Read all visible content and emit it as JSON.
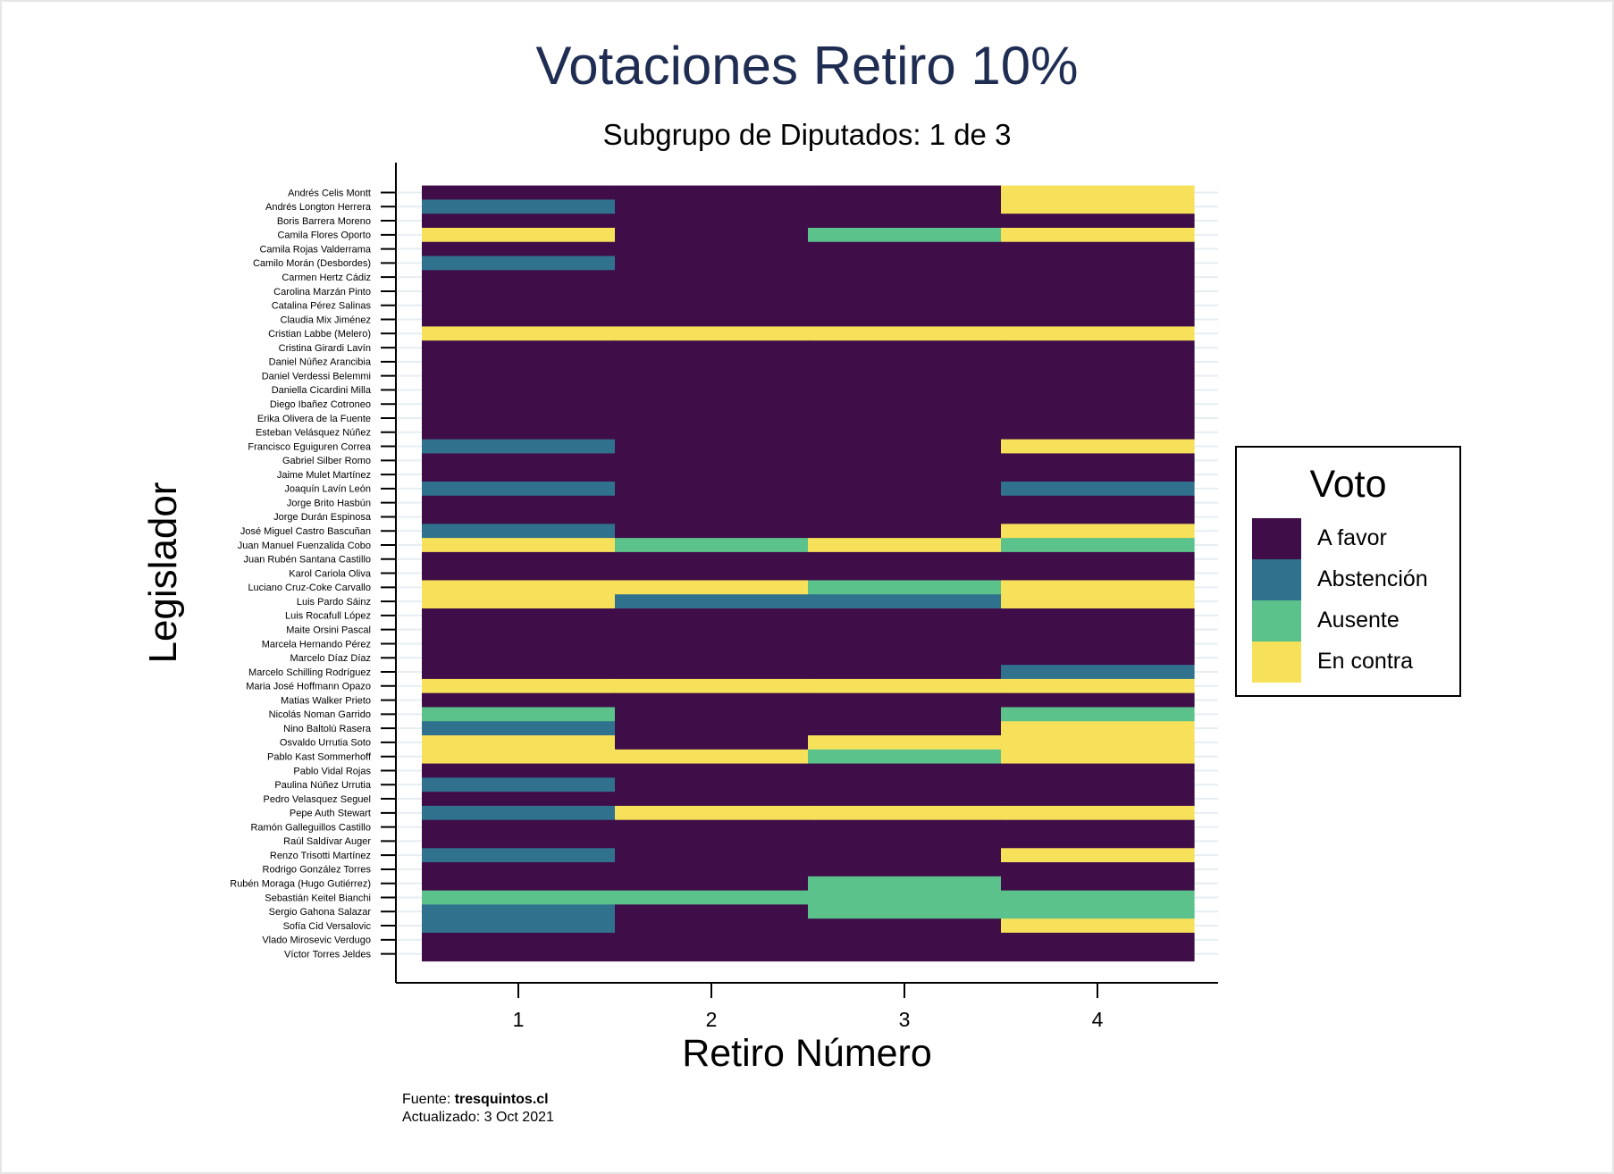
{
  "chart_data": {
    "type": "heatmap",
    "title": "Votaciones Retiro 10%",
    "subtitle": "Subgrupo de Diputados: 1 de 3",
    "xlabel": "Retiro Número",
    "ylabel": "Legislador",
    "x": [
      1,
      2,
      3,
      4
    ],
    "rows": [
      {
        "name": "Andrés Celis Montt",
        "votes": [
          "A favor",
          "A favor",
          "A favor",
          "En contra"
        ]
      },
      {
        "name": "Andrés Longton Herrera",
        "votes": [
          "Abstención",
          "A favor",
          "A favor",
          "En contra"
        ]
      },
      {
        "name": "Boris Barrera Moreno",
        "votes": [
          "A favor",
          "A favor",
          "A favor",
          "A favor"
        ]
      },
      {
        "name": "Camila Flores Oporto",
        "votes": [
          "En contra",
          "A favor",
          "Ausente",
          "En contra"
        ]
      },
      {
        "name": "Camila Rojas Valderrama",
        "votes": [
          "A favor",
          "A favor",
          "A favor",
          "A favor"
        ]
      },
      {
        "name": "Camilo Morán (Desbordes)",
        "votes": [
          "Abstención",
          "A favor",
          "A favor",
          "A favor"
        ]
      },
      {
        "name": "Carmen Hertz Cádiz",
        "votes": [
          "A favor",
          "A favor",
          "A favor",
          "A favor"
        ]
      },
      {
        "name": "Carolina Marzán Pinto",
        "votes": [
          "A favor",
          "A favor",
          "A favor",
          "A favor"
        ]
      },
      {
        "name": "Catalina Pérez Salinas",
        "votes": [
          "A favor",
          "A favor",
          "A favor",
          "A favor"
        ]
      },
      {
        "name": "Claudia Mix Jiménez",
        "votes": [
          "A favor",
          "A favor",
          "A favor",
          "A favor"
        ]
      },
      {
        "name": "Cristian Labbe (Melero)",
        "votes": [
          "En contra",
          "En contra",
          "En contra",
          "En contra"
        ]
      },
      {
        "name": "Cristina Girardi Lavín",
        "votes": [
          "A favor",
          "A favor",
          "A favor",
          "A favor"
        ]
      },
      {
        "name": "Daniel Núñez Arancibia",
        "votes": [
          "A favor",
          "A favor",
          "A favor",
          "A favor"
        ]
      },
      {
        "name": "Daniel Verdessi Belemmi",
        "votes": [
          "A favor",
          "A favor",
          "A favor",
          "A favor"
        ]
      },
      {
        "name": "Daniella Cicardini Milla",
        "votes": [
          "A favor",
          "A favor",
          "A favor",
          "A favor"
        ]
      },
      {
        "name": "Diego Ibañez Cotroneo",
        "votes": [
          "A favor",
          "A favor",
          "A favor",
          "A favor"
        ]
      },
      {
        "name": "Erika Olivera de la Fuente",
        "votes": [
          "A favor",
          "A favor",
          "A favor",
          "A favor"
        ]
      },
      {
        "name": "Esteban Velásquez Núñez",
        "votes": [
          "A favor",
          "A favor",
          "A favor",
          "A favor"
        ]
      },
      {
        "name": "Francisco Eguiguren Correa",
        "votes": [
          "Abstención",
          "A favor",
          "A favor",
          "En contra"
        ]
      },
      {
        "name": "Gabriel Silber Romo",
        "votes": [
          "A favor",
          "A favor",
          "A favor",
          "A favor"
        ]
      },
      {
        "name": "Jaime Mulet Martínez",
        "votes": [
          "A favor",
          "A favor",
          "A favor",
          "A favor"
        ]
      },
      {
        "name": "Joaquín Lavín León",
        "votes": [
          "Abstención",
          "A favor",
          "A favor",
          "Abstención"
        ]
      },
      {
        "name": "Jorge Brito Hasbún",
        "votes": [
          "A favor",
          "A favor",
          "A favor",
          "A favor"
        ]
      },
      {
        "name": "Jorge Durán Espinosa",
        "votes": [
          "A favor",
          "A favor",
          "A favor",
          "A favor"
        ]
      },
      {
        "name": "José Miguel Castro Bascuñan",
        "votes": [
          "Abstención",
          "A favor",
          "A favor",
          "En contra"
        ]
      },
      {
        "name": "Juan Manuel Fuenzalida Cobo",
        "votes": [
          "En contra",
          "Ausente",
          "En contra",
          "Ausente"
        ]
      },
      {
        "name": "Juan Rubén Santana Castillo",
        "votes": [
          "A favor",
          "A favor",
          "A favor",
          "A favor"
        ]
      },
      {
        "name": "Karol Cariola Oliva",
        "votes": [
          "A favor",
          "A favor",
          "A favor",
          "A favor"
        ]
      },
      {
        "name": "Luciano Cruz-Coke Carvallo",
        "votes": [
          "En contra",
          "En contra",
          "Ausente",
          "En contra"
        ]
      },
      {
        "name": "Luis Pardo Sáinz",
        "votes": [
          "En contra",
          "Abstención",
          "Abstención",
          "En contra"
        ]
      },
      {
        "name": "Luis Rocafull López",
        "votes": [
          "A favor",
          "A favor",
          "A favor",
          "A favor"
        ]
      },
      {
        "name": "Maite Orsini Pascal",
        "votes": [
          "A favor",
          "A favor",
          "A favor",
          "A favor"
        ]
      },
      {
        "name": "Marcela Hernando Pérez",
        "votes": [
          "A favor",
          "A favor",
          "A favor",
          "A favor"
        ]
      },
      {
        "name": "Marcelo Díaz Díaz",
        "votes": [
          "A favor",
          "A favor",
          "A favor",
          "A favor"
        ]
      },
      {
        "name": "Marcelo Schilling Rodríguez",
        "votes": [
          "A favor",
          "A favor",
          "A favor",
          "Abstención"
        ]
      },
      {
        "name": "Maria José Hoffmann Opazo",
        "votes": [
          "En contra",
          "En contra",
          "En contra",
          "En contra"
        ]
      },
      {
        "name": "Matias Walker Prieto",
        "votes": [
          "A favor",
          "A favor",
          "A favor",
          "A favor"
        ]
      },
      {
        "name": "Nicolás Noman Garrido",
        "votes": [
          "Ausente",
          "A favor",
          "A favor",
          "Ausente"
        ]
      },
      {
        "name": "Nino Baltolú Rasera",
        "votes": [
          "Abstención",
          "A favor",
          "A favor",
          "En contra"
        ]
      },
      {
        "name": "Osvaldo Urrutia Soto",
        "votes": [
          "En contra",
          "A favor",
          "En contra",
          "En contra"
        ]
      },
      {
        "name": "Pablo Kast Sommerhoff",
        "votes": [
          "En contra",
          "En contra",
          "Ausente",
          "En contra"
        ]
      },
      {
        "name": "Pablo Vidal Rojas",
        "votes": [
          "A favor",
          "A favor",
          "A favor",
          "A favor"
        ]
      },
      {
        "name": "Paulina Núñez Urrutia",
        "votes": [
          "Abstención",
          "A favor",
          "A favor",
          "A favor"
        ]
      },
      {
        "name": "Pedro Velasquez Seguel",
        "votes": [
          "A favor",
          "A favor",
          "A favor",
          "A favor"
        ]
      },
      {
        "name": "Pepe Auth Stewart",
        "votes": [
          "Abstención",
          "En contra",
          "En contra",
          "En contra"
        ]
      },
      {
        "name": "Ramón Galleguillos Castillo",
        "votes": [
          "A favor",
          "A favor",
          "A favor",
          "A favor"
        ]
      },
      {
        "name": "Raúl Saldívar Auger",
        "votes": [
          "A favor",
          "A favor",
          "A favor",
          "A favor"
        ]
      },
      {
        "name": "Renzo Trisotti Martínez",
        "votes": [
          "Abstención",
          "A favor",
          "A favor",
          "En contra"
        ]
      },
      {
        "name": "Rodrigo González Torres",
        "votes": [
          "A favor",
          "A favor",
          "A favor",
          "A favor"
        ]
      },
      {
        "name": "Rubén Moraga (Hugo Gutiérrez)",
        "votes": [
          "A favor",
          "A favor",
          "Ausente",
          "A favor"
        ]
      },
      {
        "name": "Sebastián Keitel Bianchi",
        "votes": [
          "Ausente",
          "Ausente",
          "Ausente",
          "Ausente"
        ]
      },
      {
        "name": "Sergio Gahona Salazar",
        "votes": [
          "Abstención",
          "A favor",
          "Ausente",
          "Ausente"
        ]
      },
      {
        "name": "Sofía Cid Versalovic",
        "votes": [
          "Abstención",
          "A favor",
          "A favor",
          "En contra"
        ]
      },
      {
        "name": "Vlado Mirosevic Verdugo",
        "votes": [
          "A favor",
          "A favor",
          "A favor",
          "A favor"
        ]
      },
      {
        "name": "Víctor Torres Jeldes",
        "votes": [
          "A favor",
          "A favor",
          "A favor",
          "A favor"
        ]
      }
    ],
    "legend": {
      "title": "Voto",
      "position": "right",
      "items": [
        {
          "label": "A favor",
          "color": "#3f0d47"
        },
        {
          "label": "Abstención",
          "color": "#30718e"
        },
        {
          "label": "Ausente",
          "color": "#5bc28c"
        },
        {
          "label": "En contra",
          "color": "#f7e15b"
        }
      ]
    },
    "grid": true
  },
  "source": {
    "prefix": "Fuente: ",
    "site": "tresquintos.cl",
    "updated": "Actualizado: 3 Oct 2021"
  }
}
